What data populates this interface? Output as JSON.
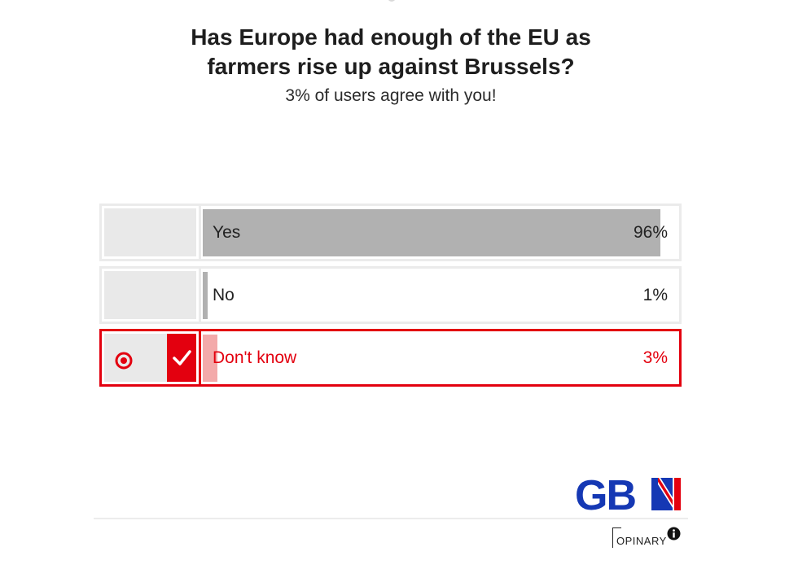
{
  "poll": {
    "title_line1": "Has Europe had enough of the EU as",
    "title_line2": "farmers rise up against Brussels?",
    "result_text": "3% of users agree with you!",
    "options": [
      {
        "label": "Yes",
        "percent_text": "96%",
        "percent": 96,
        "selected": false
      },
      {
        "label": "No",
        "percent_text": "1%",
        "percent": 1,
        "selected": false
      },
      {
        "label": "Don't know",
        "percent_text": "3%",
        "percent": 3,
        "selected": true
      }
    ]
  },
  "branding": {
    "logo_text": "GB",
    "provider": "OPINARY",
    "colors": {
      "accent": "#e3000f",
      "logo_blue": "#1538b4",
      "bar_gray": "#b1b1b1",
      "bar_selected": "#f3aaaa"
    }
  },
  "icons": {
    "selected_radio": "target-icon",
    "selected_check": "check-icon",
    "info": "info-icon",
    "brand": "gb-news-logo"
  }
}
